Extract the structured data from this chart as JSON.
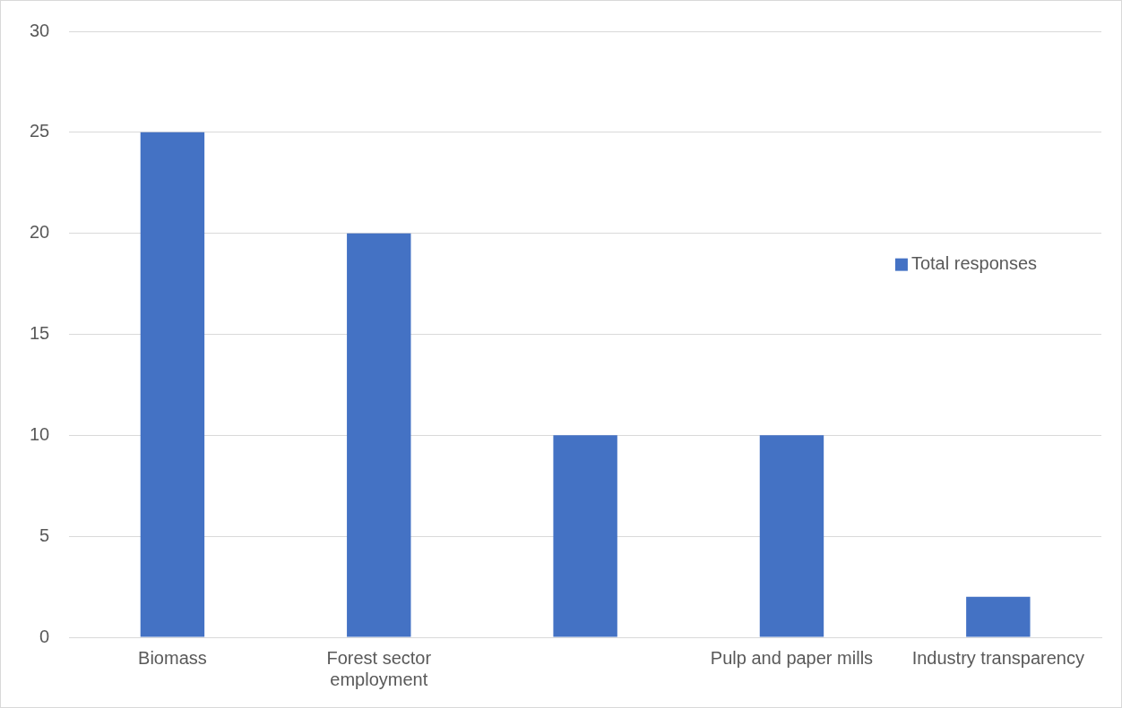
{
  "chart_data": {
    "type": "bar",
    "categories": [
      "Biomass",
      [
        "Forest sector",
        "employment"
      ],
      null,
      "Pulp and paper mills",
      "Industry transparency"
    ],
    "series": [
      {
        "name": "Total responses",
        "color": "#4472c4",
        "values": [
          25,
          20,
          10,
          10,
          2
        ]
      }
    ],
    "ylim": [
      0,
      30
    ],
    "yticks": [
      0,
      5,
      10,
      15,
      20,
      25,
      30
    ],
    "grid": "y",
    "legend": "top right"
  }
}
